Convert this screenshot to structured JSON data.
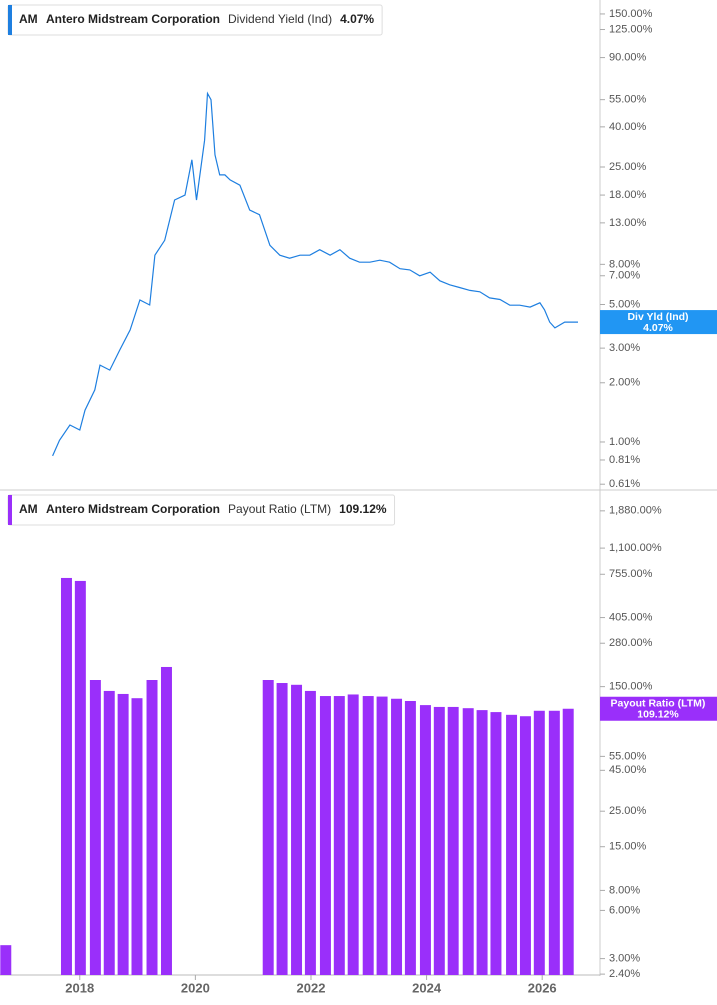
{
  "chart_data": [
    {
      "type": "line",
      "log": true,
      "color": "#1e7fe0",
      "ticker": "AM",
      "company": "Antero Midstream Corporation",
      "metric": "Dividend Yield (Ind)",
      "marker": {
        "name": "Div Yld (Ind)",
        "value": 4.07,
        "label": "4.07%"
      },
      "xlim": [
        2016.62,
        2027.0
      ],
      "ylim": [
        0.57,
        176.6
      ],
      "yticks": [
        {
          "value": 150,
          "label": "150.00%"
        },
        {
          "value": 125,
          "label": "125.00%"
        },
        {
          "value": 90,
          "label": "90.00%"
        },
        {
          "value": 55,
          "label": "55.00%"
        },
        {
          "value": 40,
          "label": "40.00%"
        },
        {
          "value": 25,
          "label": "25.00%"
        },
        {
          "value": 18,
          "label": "18.00%"
        },
        {
          "value": 13,
          "label": "13.00%"
        },
        {
          "value": 8,
          "label": "8.00%"
        },
        {
          "value": 7,
          "label": "7.00%"
        },
        {
          "value": 5,
          "label": "5.00%"
        },
        {
          "value": 3,
          "label": "3.00%"
        },
        {
          "value": 2,
          "label": "2.00%"
        },
        {
          "value": 1,
          "label": "1.00%"
        },
        {
          "value": 0.81,
          "label": "0.81%"
        },
        {
          "value": 0.61,
          "label": "0.61%"
        }
      ],
      "x": [
        2017.53,
        2017.65,
        2017.83,
        2018.0,
        2018.09,
        2018.26,
        2018.35,
        2018.52,
        2018.69,
        2018.87,
        2019.04,
        2019.21,
        2019.3,
        2019.47,
        2019.64,
        2019.82,
        2019.94,
        2020.02,
        2020.16,
        2020.21,
        2020.27,
        2020.34,
        2020.42,
        2020.51,
        2020.6,
        2020.77,
        2020.94,
        2021.11,
        2021.29,
        2021.46,
        2021.63,
        2021.81,
        2021.98,
        2022.15,
        2022.33,
        2022.5,
        2022.67,
        2022.84,
        2023.02,
        2023.19,
        2023.36,
        2023.54,
        2023.71,
        2023.88,
        2024.06,
        2024.23,
        2024.4,
        2024.57,
        2024.75,
        2024.92,
        2025.09,
        2025.27,
        2025.44,
        2025.61,
        2025.79,
        2025.96,
        2026.04,
        2026.13,
        2026.22,
        2026.39,
        2026.62
      ],
      "values": [
        0.85,
        1.02,
        1.22,
        1.15,
        1.45,
        1.84,
        2.46,
        2.32,
        2.93,
        3.71,
        5.27,
        4.97,
        8.9,
        10.6,
        17.0,
        18.0,
        27.2,
        17.0,
        34.2,
        59.2,
        55,
        28.8,
        22.8,
        22.8,
        21.5,
        20.2,
        15.1,
        14.3,
        10.0,
        8.9,
        8.6,
        8.9,
        8.9,
        9.5,
        8.9,
        9.5,
        8.6,
        8.2,
        8.2,
        8.4,
        8.2,
        7.6,
        7.5,
        7.0,
        7.3,
        6.6,
        6.3,
        6.1,
        5.9,
        5.8,
        5.4,
        5.3,
        4.96,
        4.96,
        4.85,
        5.1,
        4.7,
        4.07,
        3.8,
        4.07,
        4.07
      ]
    },
    {
      "type": "bar",
      "log": true,
      "color": "#9a2ffa",
      "ticker": "AM",
      "company": "Antero Midstream Corporation",
      "metric": "Payout Ratio (LTM)",
      "marker": {
        "name": "Payout Ratio (LTM)",
        "value": 109.12,
        "label": "109.12%"
      },
      "xlim": [
        2016.62,
        2027.0
      ],
      "ylim": [
        2.37,
        2430
      ],
      "xticks": [
        2018,
        2020,
        2022,
        2024,
        2026
      ],
      "yticks": [
        {
          "value": 1880,
          "label": "1,880.00%"
        },
        {
          "value": 1100,
          "label": "1,100.00%"
        },
        {
          "value": 755,
          "label": "755.00%"
        },
        {
          "value": 405,
          "label": "405.00%"
        },
        {
          "value": 280,
          "label": "280.00%"
        },
        {
          "value": 150,
          "label": "150.00%"
        },
        {
          "value": 55,
          "label": "55.00%"
        },
        {
          "value": 45,
          "label": "45.00%"
        },
        {
          "value": 25,
          "label": "25.00%"
        },
        {
          "value": 15,
          "label": "15.00%"
        },
        {
          "value": 8,
          "label": "8.00%"
        },
        {
          "value": 6,
          "label": "6.00%"
        },
        {
          "value": 3,
          "label": "3.00%"
        },
        {
          "value": 2.4,
          "label": "2.40%"
        }
      ],
      "x": [
        2016.72,
        2017.77,
        2018.01,
        2018.27,
        2018.51,
        2018.75,
        2018.99,
        2019.25,
        2019.5,
        2021.26,
        2021.5,
        2021.75,
        2021.99,
        2022.25,
        2022.49,
        2022.73,
        2022.99,
        2023.23,
        2023.48,
        2023.72,
        2023.98,
        2024.22,
        2024.46,
        2024.72,
        2024.96,
        2025.2,
        2025.47,
        2025.71,
        2025.95,
        2026.21,
        2026.45
      ],
      "values": [
        3.64,
        716,
        686,
        165,
        141,
        135,
        127,
        165,
        199,
        165,
        158,
        154,
        141,
        131,
        131,
        134,
        131,
        130,
        126,
        122,
        115,
        112,
        112,
        110,
        107,
        104,
        100,
        98,
        106,
        106,
        109.12
      ]
    }
  ]
}
